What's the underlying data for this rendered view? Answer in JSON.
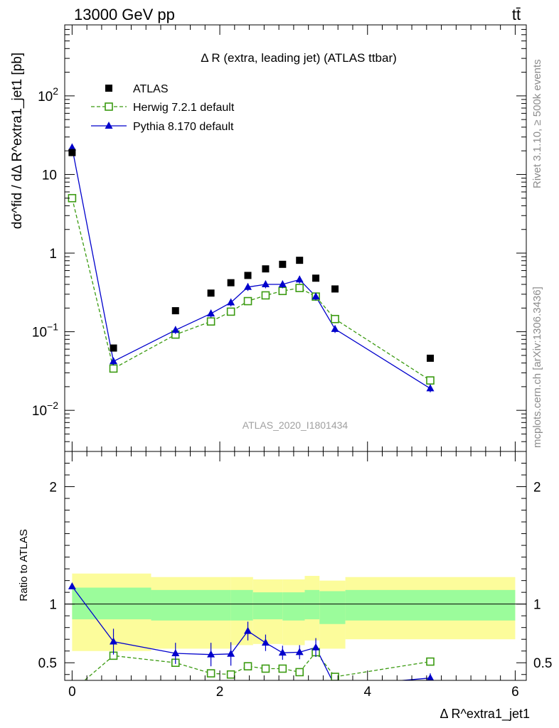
{
  "header": {
    "energy_label": "13000 GeV pp",
    "process_label": "tt̄"
  },
  "side_labels": {
    "rivet": "Rivet 3.1.10, ≥ 500k events",
    "mcplots": "mcplots.cern.ch [arXiv:1306.3436]"
  },
  "colors": {
    "atlas": "#000000",
    "herwig": "#3a9a10",
    "pythia": "#0000cc",
    "band_inner": "#9bfc9b",
    "band_outer": "#fcfc9b"
  },
  "chart_data": [
    {
      "type": "line",
      "title": "Δ R (extra, leading jet) (ATLAS ttbar)",
      "analysis_label": "ATLAS_2020_I1801434",
      "ylabel": "dσ^fid / dΔ R^extra1_jet1 [pb]",
      "yscale": "log",
      "xlim": [
        -0.1,
        6.15
      ],
      "ylim": [
        0.003,
        800
      ],
      "y_ticks": [
        {
          "value": 0.01,
          "label": "10",
          "exp": "−2"
        },
        {
          "value": 0.1,
          "label": "10",
          "exp": "−1"
        },
        {
          "value": 1,
          "label": "1",
          "exp": ""
        },
        {
          "value": 10,
          "label": "10",
          "exp": ""
        },
        {
          "value": 100,
          "label": "10",
          "exp": "2"
        }
      ],
      "legend_position": "top-left",
      "series": [
        {
          "name": "ATLAS",
          "style": "markers",
          "x": [
            0.0,
            0.56,
            1.4,
            1.88,
            2.15,
            2.38,
            2.62,
            2.85,
            3.08,
            3.3,
            3.56,
            4.85
          ],
          "y": [
            19,
            0.062,
            0.185,
            0.31,
            0.42,
            0.52,
            0.63,
            0.72,
            0.81,
            0.48,
            0.35,
            0.046
          ]
        },
        {
          "name": "Herwig 7.2.1 default",
          "style": "dashed-open-square",
          "x": [
            0.0,
            0.56,
            1.4,
            1.88,
            2.15,
            2.38,
            2.62,
            2.85,
            3.08,
            3.3,
            3.56,
            4.85
          ],
          "y": [
            5.0,
            0.034,
            0.092,
            0.135,
            0.18,
            0.245,
            0.29,
            0.33,
            0.36,
            0.28,
            0.145,
            0.024
          ]
        },
        {
          "name": "Pythia 8.170 default",
          "style": "solid-filled-triangle",
          "x": [
            0.0,
            0.56,
            1.4,
            1.88,
            2.15,
            2.38,
            2.62,
            2.85,
            3.08,
            3.3,
            3.56,
            4.85
          ],
          "y": [
            22,
            0.042,
            0.105,
            0.17,
            0.235,
            0.37,
            0.4,
            0.4,
            0.46,
            0.28,
            0.108,
            0.019
          ]
        }
      ]
    },
    {
      "type": "line",
      "ylabel": "Ratio to ATLAS",
      "xlabel": "Δ R^extra1_jet1",
      "xlim": [
        -0.1,
        6.15
      ],
      "ylim": [
        0.35,
        2.3
      ],
      "x_ticks": [
        0,
        2,
        4,
        6
      ],
      "y_ticks": [
        0.5,
        1,
        2
      ],
      "reference_line": 1,
      "bands": {
        "edges": [
          0.0,
          1.07,
          2.15,
          2.45,
          2.85,
          3.15,
          3.35,
          3.7,
          6.0
        ],
        "inner_low": [
          0.87,
          0.86,
          0.86,
          0.87,
          0.86,
          0.87,
          0.83,
          0.86
        ],
        "inner_high": [
          1.14,
          1.12,
          1.12,
          1.1,
          1.1,
          1.12,
          1.11,
          1.12
        ],
        "outer_low": [
          0.6,
          0.62,
          0.65,
          0.66,
          0.65,
          0.69,
          0.62,
          0.7
        ],
        "outer_high": [
          1.26,
          1.23,
          1.23,
          1.21,
          1.21,
          1.24,
          1.2,
          1.23
        ]
      },
      "series": [
        {
          "name": "Herwig 7.2.1 default",
          "x": [
            0.0,
            0.56,
            1.4,
            1.88,
            2.15,
            2.38,
            2.62,
            2.85,
            3.08,
            3.3,
            3.56,
            4.85
          ],
          "y": [
            0.26,
            0.56,
            0.5,
            0.41,
            0.4,
            0.47,
            0.45,
            0.45,
            0.42,
            0.59,
            0.38,
            0.51
          ],
          "err": [
            0.0,
            0.03,
            0.03,
            0.03,
            0.03,
            0.03,
            0.02,
            0.02,
            0.03,
            0.04,
            0.03,
            0.03
          ]
        },
        {
          "name": "Pythia 8.170 default",
          "x": [
            0.0,
            0.56,
            1.4,
            1.88,
            2.15,
            2.38,
            2.62,
            2.85,
            3.08,
            3.3,
            3.56,
            4.85
          ],
          "y": [
            1.15,
            0.68,
            0.58,
            0.57,
            0.575,
            0.77,
            0.67,
            0.585,
            0.59,
            0.63,
            0.3,
            0.37
          ],
          "err": [
            0.02,
            0.11,
            0.09,
            0.1,
            0.1,
            0.08,
            0.07,
            0.06,
            0.06,
            0.08,
            0.04,
            0.04
          ]
        }
      ]
    }
  ]
}
